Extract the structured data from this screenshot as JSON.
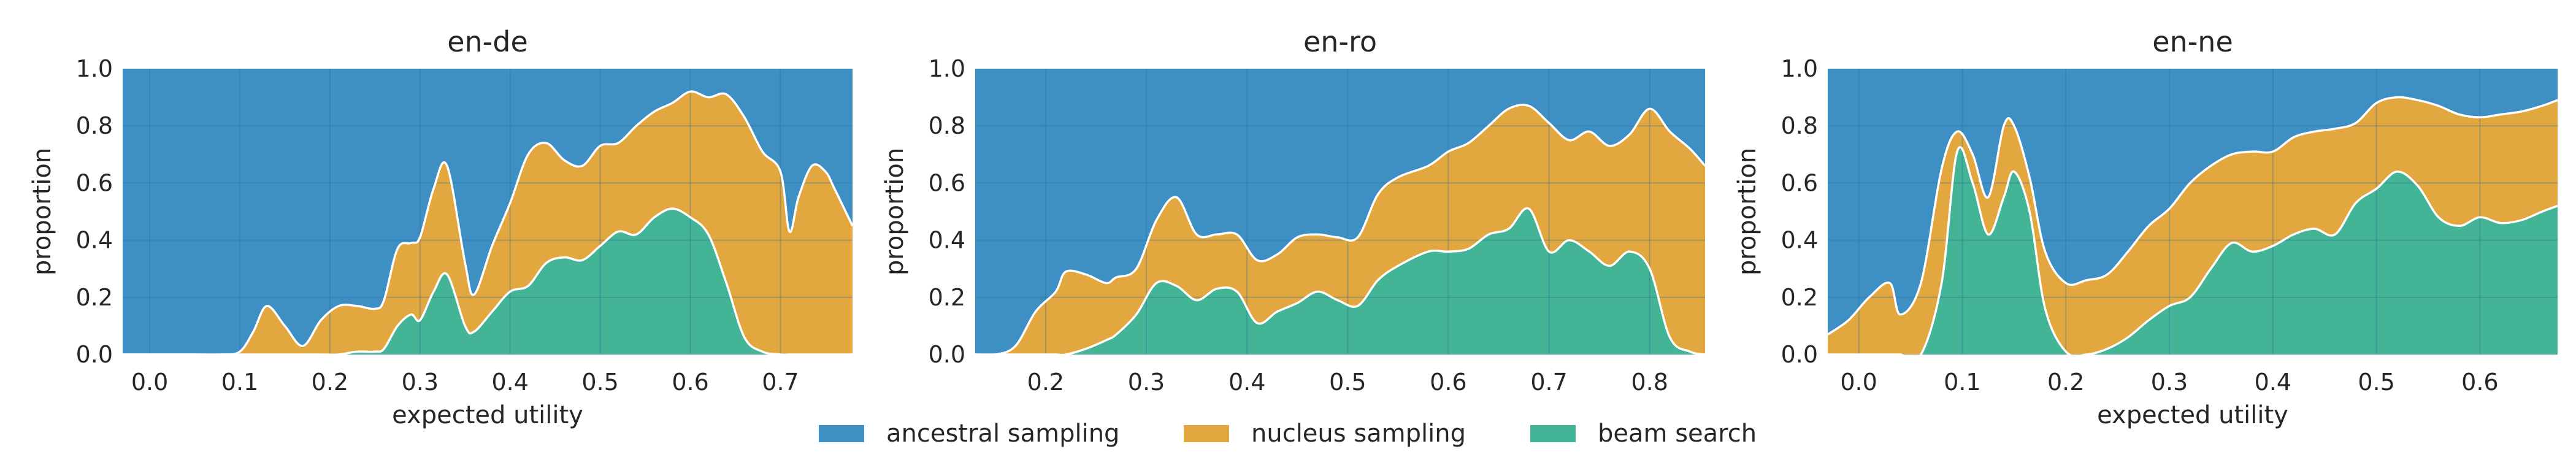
{
  "colors": {
    "ancestral": "#3d8fc4",
    "nucleus": "#e3a73f",
    "beam": "#43b496",
    "grid": "#2d6f9c",
    "divider": "#ffffff"
  },
  "legend": [
    "ancestral sampling",
    "nucleus sampling",
    "beam search"
  ],
  "chart_data": [
    {
      "type": "area",
      "title": "en-de",
      "xlabel": "expected utility",
      "ylabel": "proportion",
      "xlim": [
        -0.03,
        0.78
      ],
      "ylim": [
        0,
        1.0
      ],
      "xticks": [
        0.0,
        0.1,
        0.2,
        0.3,
        0.4,
        0.5,
        0.6,
        0.7
      ],
      "yticks": [
        0.0,
        0.2,
        0.4,
        0.6,
        0.8,
        1.0
      ],
      "grid": true,
      "x": [
        -0.03,
        0.0,
        0.05,
        0.08,
        0.1,
        0.115,
        0.13,
        0.15,
        0.17,
        0.19,
        0.21,
        0.23,
        0.25,
        0.26,
        0.275,
        0.29,
        0.3,
        0.315,
        0.33,
        0.35,
        0.36,
        0.38,
        0.4,
        0.42,
        0.44,
        0.46,
        0.48,
        0.5,
        0.52,
        0.54,
        0.56,
        0.58,
        0.6,
        0.62,
        0.64,
        0.66,
        0.68,
        0.7,
        0.71,
        0.72,
        0.735,
        0.75,
        0.76,
        0.78
      ],
      "series": [
        {
          "name": "beam search",
          "values": [
            0,
            0,
            0,
            0,
            0,
            0,
            0,
            0,
            0,
            0,
            0,
            0.01,
            0.01,
            0.02,
            0.1,
            0.14,
            0.12,
            0.22,
            0.28,
            0.1,
            0.08,
            0.15,
            0.22,
            0.24,
            0.32,
            0.34,
            0.33,
            0.38,
            0.43,
            0.42,
            0.48,
            0.51,
            0.48,
            0.42,
            0.25,
            0.06,
            0.01,
            0,
            0,
            0,
            0,
            0,
            0,
            0
          ]
        },
        {
          "name": "nucleus sampling",
          "values": [
            0,
            0,
            0,
            0,
            0.01,
            0.08,
            0.17,
            0.1,
            0.03,
            0.12,
            0.17,
            0.16,
            0.15,
            0.17,
            0.27,
            0.25,
            0.29,
            0.36,
            0.38,
            0.22,
            0.13,
            0.23,
            0.31,
            0.46,
            0.42,
            0.34,
            0.33,
            0.35,
            0.31,
            0.38,
            0.37,
            0.37,
            0.44,
            0.48,
            0.66,
            0.77,
            0.7,
            0.64,
            0.43,
            0.55,
            0.66,
            0.64,
            0.58,
            0.45
          ]
        }
      ]
    },
    {
      "type": "area",
      "title": "en-ro",
      "xlabel": "",
      "ylabel": "proportion",
      "xlim": [
        0.13,
        0.855
      ],
      "ylim": [
        0,
        1.0
      ],
      "xticks": [
        0.2,
        0.3,
        0.4,
        0.5,
        0.6,
        0.7,
        0.8
      ],
      "yticks": [
        0.0,
        0.2,
        0.4,
        0.6,
        0.8,
        1.0
      ],
      "grid": true,
      "x": [
        0.13,
        0.15,
        0.17,
        0.19,
        0.21,
        0.22,
        0.24,
        0.26,
        0.27,
        0.29,
        0.31,
        0.33,
        0.35,
        0.37,
        0.39,
        0.41,
        0.43,
        0.45,
        0.47,
        0.49,
        0.51,
        0.53,
        0.55,
        0.58,
        0.6,
        0.62,
        0.64,
        0.66,
        0.68,
        0.7,
        0.72,
        0.74,
        0.76,
        0.78,
        0.8,
        0.82,
        0.84,
        0.855
      ],
      "series": [
        {
          "name": "beam search",
          "values": [
            0,
            0,
            0,
            0,
            0,
            0,
            0.02,
            0.05,
            0.07,
            0.14,
            0.25,
            0.24,
            0.19,
            0.23,
            0.22,
            0.11,
            0.15,
            0.18,
            0.22,
            0.19,
            0.17,
            0.26,
            0.31,
            0.36,
            0.36,
            0.37,
            0.42,
            0.44,
            0.51,
            0.36,
            0.4,
            0.36,
            0.31,
            0.36,
            0.3,
            0.06,
            0.01,
            0
          ]
        },
        {
          "name": "nucleus sampling",
          "values": [
            0,
            0,
            0.03,
            0.15,
            0.22,
            0.29,
            0.26,
            0.2,
            0.2,
            0.16,
            0.22,
            0.31,
            0.23,
            0.19,
            0.2,
            0.22,
            0.2,
            0.23,
            0.2,
            0.22,
            0.24,
            0.3,
            0.31,
            0.3,
            0.35,
            0.37,
            0.38,
            0.42,
            0.36,
            0.45,
            0.35,
            0.42,
            0.42,
            0.41,
            0.56,
            0.72,
            0.71,
            0.66
          ]
        }
      ]
    },
    {
      "type": "area",
      "title": "en-ne",
      "xlabel": "expected utility",
      "ylabel": "proportion",
      "xlim": [
        -0.03,
        0.675
      ],
      "ylim": [
        0,
        1.0
      ],
      "xticks": [
        0.0,
        0.1,
        0.2,
        0.3,
        0.4,
        0.5,
        0.6
      ],
      "yticks": [
        0.0,
        0.2,
        0.4,
        0.6,
        0.8,
        1.0
      ],
      "grid": true,
      "x": [
        -0.03,
        -0.01,
        0.01,
        0.03,
        0.04,
        0.06,
        0.08,
        0.095,
        0.11,
        0.125,
        0.14,
        0.15,
        0.165,
        0.18,
        0.2,
        0.22,
        0.24,
        0.26,
        0.28,
        0.3,
        0.32,
        0.34,
        0.36,
        0.38,
        0.4,
        0.42,
        0.44,
        0.46,
        0.48,
        0.5,
        0.52,
        0.54,
        0.56,
        0.58,
        0.6,
        0.62,
        0.64,
        0.66,
        0.675
      ],
      "series": [
        {
          "name": "beam search",
          "values": [
            0,
            0,
            0,
            0,
            0,
            0,
            0.25,
            0.71,
            0.6,
            0.42,
            0.55,
            0.64,
            0.5,
            0.16,
            0.01,
            0,
            0.02,
            0.06,
            0.12,
            0.17,
            0.2,
            0.3,
            0.39,
            0.36,
            0.38,
            0.42,
            0.44,
            0.42,
            0.53,
            0.58,
            0.64,
            0.59,
            0.48,
            0.45,
            0.48,
            0.46,
            0.47,
            0.5,
            0.52
          ]
        },
        {
          "name": "nucleus sampling",
          "values": [
            0.07,
            0.12,
            0.2,
            0.25,
            0.14,
            0.25,
            0.4,
            0.07,
            0.1,
            0.13,
            0.25,
            0.16,
            0.12,
            0.2,
            0.24,
            0.26,
            0.26,
            0.3,
            0.33,
            0.34,
            0.4,
            0.36,
            0.31,
            0.35,
            0.33,
            0.34,
            0.34,
            0.37,
            0.28,
            0.3,
            0.26,
            0.3,
            0.39,
            0.39,
            0.35,
            0.38,
            0.38,
            0.37,
            0.37
          ]
        }
      ]
    }
  ]
}
